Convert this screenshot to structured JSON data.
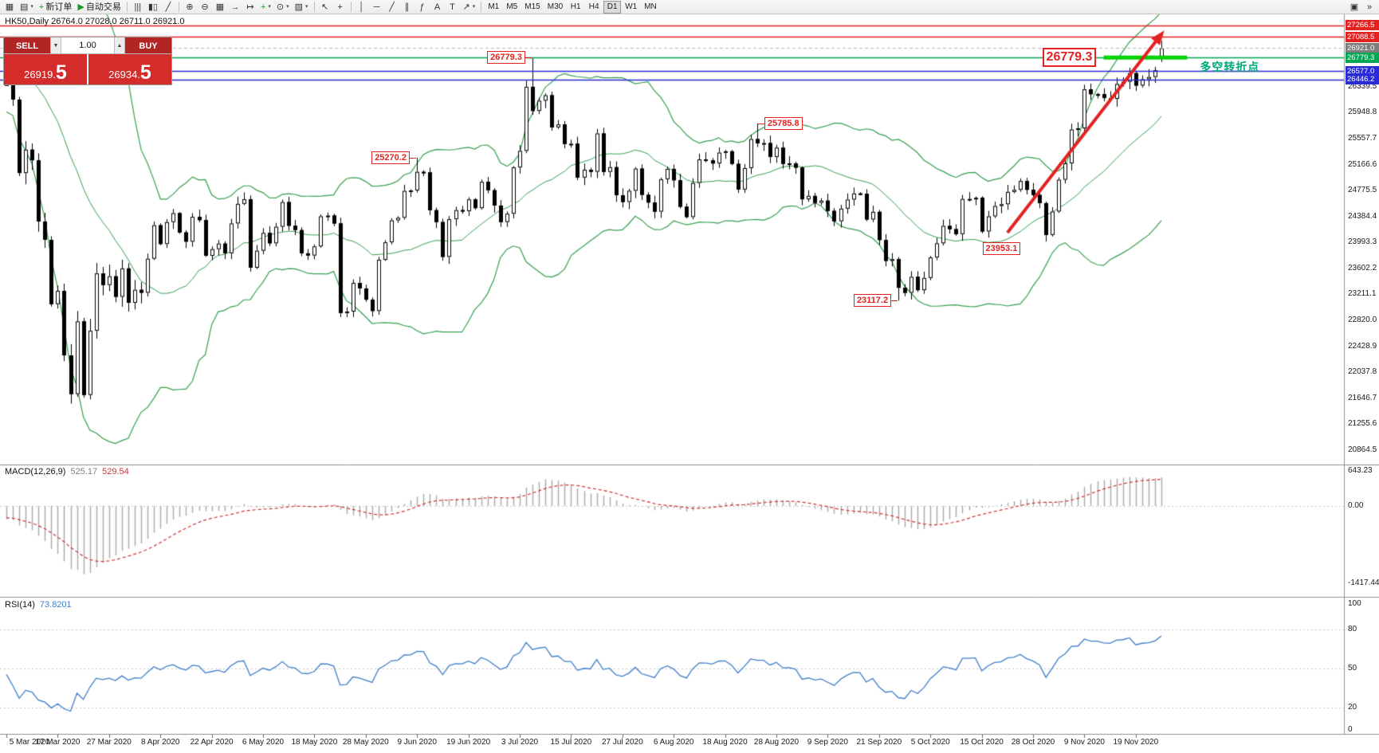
{
  "colors": {
    "background": "#ffffff",
    "candle_up_fill": "#ffffff",
    "candle_down_fill": "#000000",
    "candle_border": "#000000",
    "bollinger": "#35a050",
    "macd_histogram": "#a8a8a8",
    "macd_signal": "#d23030",
    "rsi_line": "#3f7fca",
    "level_red": "#e32222",
    "level_green": "#00a651",
    "level_blue": "#2b2bd5",
    "highlight_green": "#00d300",
    "turning_label_color": "#00a878",
    "separator": "#8f8f8f",
    "grid_dotted": "#c8c8c8",
    "axis_text": "#1a1a1a"
  },
  "toolbar": {
    "items": [
      {
        "t": "btn",
        "name": "new-chart-icon",
        "glyph": "▦"
      },
      {
        "t": "btn",
        "name": "profiles-icon",
        "glyph": "▤",
        "caret": true
      },
      {
        "t": "btn",
        "name": "new-order-button",
        "glyph": "+",
        "glyph_color": "#1a9c2f",
        "label": "新订单"
      },
      {
        "t": "btn",
        "name": "autotrading-button",
        "glyph": "▶",
        "glyph_color": "#1a9c2f",
        "label": "自动交易"
      },
      {
        "t": "sep"
      },
      {
        "t": "btn",
        "name": "bar-chart-icon",
        "glyph": "|||"
      },
      {
        "t": "btn",
        "name": "candlestick-chart-icon",
        "glyph": "▮▯"
      },
      {
        "t": "btn",
        "name": "line-chart-icon",
        "glyph": "╱"
      },
      {
        "t": "sep"
      },
      {
        "t": "btn",
        "name": "zoom-in-icon",
        "glyph": "⊕"
      },
      {
        "t": "btn",
        "name": "zoom-out-icon",
        "glyph": "⊖"
      },
      {
        "t": "btn",
        "name": "tile-windows-icon",
        "glyph": "▦"
      },
      {
        "t": "btn",
        "name": "auto-scroll-icon",
        "glyph": "→"
      },
      {
        "t": "btn",
        "name": "chart-shift-icon",
        "glyph": "↦"
      },
      {
        "t": "btn",
        "name": "indicators-icon",
        "glyph": "+",
        "glyph_color": "#1a9c2f",
        "caret": true
      },
      {
        "t": "btn",
        "name": "periods-icon",
        "glyph": "⊙",
        "caret": true
      },
      {
        "t": "btn",
        "name": "templates-icon",
        "glyph": "▧",
        "caret": true
      },
      {
        "t": "sep"
      },
      {
        "t": "btn",
        "name": "cursor-icon",
        "glyph": "↖"
      },
      {
        "t": "btn",
        "name": "crosshair-icon",
        "glyph": "+"
      },
      {
        "t": "sep"
      },
      {
        "t": "btn",
        "name": "vertical-line-icon",
        "glyph": "│"
      },
      {
        "t": "btn",
        "name": "horizontal-line-icon",
        "glyph": "─"
      },
      {
        "t": "btn",
        "name": "trendline-icon",
        "glyph": "╱"
      },
      {
        "t": "btn",
        "name": "channel-icon",
        "glyph": "∥"
      },
      {
        "t": "btn",
        "name": "fibonacci-icon",
        "glyph": "ƒ"
      },
      {
        "t": "btn",
        "name": "text-icon",
        "glyph": "A"
      },
      {
        "t": "btn",
        "name": "text-label-icon",
        "glyph": "T"
      },
      {
        "t": "btn",
        "name": "arrows-icon",
        "glyph": "↗",
        "caret": true
      },
      {
        "t": "sep"
      }
    ],
    "timeframes": [
      {
        "label": "M1"
      },
      {
        "label": "M5"
      },
      {
        "label": "M15"
      },
      {
        "label": "M30"
      },
      {
        "label": "H1"
      },
      {
        "label": "H4"
      },
      {
        "label": "D1",
        "active": true
      },
      {
        "label": "W1"
      },
      {
        "label": "MN"
      }
    ],
    "overflow_items": [
      {
        "name": "chart-window-icon",
        "glyph": "▣"
      },
      {
        "name": "toolbar-overflow-icon",
        "glyph": "»"
      }
    ]
  },
  "chart": {
    "header": "HK50,Daily  26764.0 27028.0 26711.0 26921.0",
    "one_click": {
      "sell_label": "SELL",
      "buy_label": "BUY",
      "volume": "1.00",
      "sell_price_small": "26919.",
      "sell_price_big": "5",
      "buy_price_small": "26934.",
      "buy_price_big": "5"
    },
    "price_axis_tags": [
      {
        "text": "27266.5",
        "price": 27266.5,
        "bg": "#e32222"
      },
      {
        "text": "27088.5",
        "price": 27088.5,
        "bg": "#e32222"
      },
      {
        "text": "26921.0",
        "price": 26921.0,
        "bg": "#7d7d7d"
      },
      {
        "text": "26779.3",
        "price": 26779.3,
        "bg": "#00a651"
      },
      {
        "text": "26577.0",
        "price": 26577.0,
        "bg": "#2b2bd5"
      },
      {
        "text": "26446.2",
        "price": 26446.2,
        "bg": "#2b2bd5"
      }
    ],
    "levels": [
      {
        "price": 27266.5,
        "color": "#e32222",
        "w": 1.3,
        "dash": false
      },
      {
        "price": 27088.5,
        "color": "#e32222",
        "w": 1.3,
        "dash": false
      },
      {
        "price": 26921.0,
        "color": "#bbbbbb",
        "w": 1,
        "dash": true
      },
      {
        "price": 26779.3,
        "color": "#00a651",
        "w": 1.5,
        "dash": false
      },
      {
        "price": 26577.0,
        "color": "#2b2bd5",
        "w": 1.3,
        "dash": false
      },
      {
        "price": 26446.2,
        "color": "#2b2bd5",
        "w": 1.3,
        "dash": false
      }
    ],
    "highlight_segment": {
      "price": 26779.3,
      "from_index": 171,
      "to_index": 184,
      "thickness": 5
    },
    "trend_arrow": {
      "from_index": 156,
      "from_price": 24140,
      "to_index": 180,
      "to_price": 27130,
      "width": 4
    },
    "annotations": [
      {
        "text": "25270.2",
        "index": 64,
        "price": 25270.2,
        "side": "left",
        "connector": true,
        "big": false
      },
      {
        "text": "26779.3",
        "index": 82,
        "price": 26779.3,
        "side": "left",
        "connector": true,
        "big": false
      },
      {
        "text": "25785.8",
        "index": 117,
        "price": 25785.8,
        "side": "right",
        "connector": true,
        "big": false
      },
      {
        "text": "23953.1",
        "index": 151,
        "price": 23900,
        "side": "right",
        "connector": false,
        "big": false
      },
      {
        "text": "23117.2",
        "index": 139,
        "price": 23117.2,
        "side": "left",
        "connector": true,
        "big": false
      },
      {
        "text": "26779.3",
        "index": 171,
        "price": 26779.3,
        "side": "left",
        "connector": false,
        "big": true
      }
    ],
    "turning_label": {
      "text": "多空转折点",
      "index": 186,
      "price": 26640
    }
  },
  "panes": {
    "macd": {
      "name": "MACD(12,26,9)",
      "value_main": "525.17",
      "value_signal": "529.54"
    },
    "rsi": {
      "name": "RSI(14)",
      "value": "73.8201"
    }
  },
  "chart_data": {
    "type": "candlestick",
    "symbol": "HK50",
    "timeframe": "Daily",
    "current_bar": {
      "open": 26764.0,
      "high": 27028.0,
      "low": 26711.0,
      "close": 26921.0
    },
    "bid": 26919.5,
    "ask": 26934.5,
    "price_axis_ticks": [
      26730.6,
      26339.5,
      25948.8,
      25557.7,
      25166.6,
      24775.5,
      24384.4,
      23993.3,
      23602.2,
      23211.1,
      22820.0,
      22428.9,
      22037.8,
      21646.7,
      21255.6,
      20864.5
    ],
    "x_tick_step": 8,
    "x_tick_labels": [
      "5 Mar 2020",
      "17 Mar 2020",
      "27 Mar 2020",
      "8 Apr 2020",
      "22 Apr 2020",
      "6 May 2020",
      "18 May 2020",
      "28 May 2020",
      "9 Jun 2020",
      "19 Jun 2020",
      "3 Jul 2020",
      "15 Jul 2020",
      "27 Jul 2020",
      "6 Aug 2020",
      "18 Aug 2020",
      "28 Aug 2020",
      "9 Sep 2020",
      "21 Sep 2020",
      "5 Oct 2020",
      "15 Oct 2020",
      "28 Oct 2020",
      "9 Nov 2020",
      "19 Nov 2020"
    ],
    "pre_closes": [
      27404,
      27309,
      27160,
      26820,
      26893,
      26782,
      26696,
      26820,
      27308,
      27228,
      27119,
      26926,
      26820,
      26729,
      26129,
      25954,
      26291,
      26284,
      26222
    ],
    "closes": [
      26767,
      26146,
      25040,
      25392,
      25232,
      24309,
      24033,
      23064,
      23264,
      22292,
      21709,
      22805,
      21696,
      22663,
      23527,
      23352,
      23484,
      23175,
      23603,
      23085,
      23280,
      23236,
      23749,
      24253,
      23970,
      24300,
      24435,
      24145,
      24006,
      24380,
      24330,
      23793,
      23893,
      23977,
      23831,
      24280,
      24575,
      24644,
      23613,
      23869,
      24137,
      23981,
      24230,
      24602,
      24245,
      24180,
      23830,
      23797,
      23934,
      24388,
      24399,
      24280,
      22930,
      22953,
      23384,
      23301,
      23132,
      22961,
      23732,
      23996,
      24326,
      24366,
      24770,
      24777,
      25057,
      25049,
      24480,
      24301,
      23776,
      24344,
      24481,
      24465,
      24643,
      24511,
      24907,
      24781,
      24550,
      24301,
      24427,
      25124,
      25373,
      26339,
      25975,
      26129,
      26211,
      25727,
      25772,
      25477,
      25481,
      24971,
      25089,
      25058,
      25636,
      25057,
      25128,
      24705,
      24603,
      24772,
      25106,
      24711,
      24595,
      24458,
      24946,
      25102,
      24930,
      24532,
      24377,
      24890,
      25245,
      25230,
      25183,
      25347,
      25367,
      25178,
      24791,
      25114,
      25551,
      25486,
      25491,
      25281,
      25422,
      25177,
      25185,
      25120,
      24644,
      24695,
      24590,
      24624,
      24469,
      24313,
      24503,
      24640,
      24732,
      24726,
      24340,
      24455,
      24030,
      23716,
      23742,
      23311,
      23235,
      23476,
      23275,
      23459,
      23767,
      23981,
      24243,
      24194,
      24119,
      24649,
      24650,
      24667,
      24159,
      24387,
      24543,
      24570,
      24755,
      24786,
      24919,
      24787,
      24709,
      24586,
      24107,
      24460,
      24939,
      25186,
      25695,
      25713,
      26301,
      26227,
      26226,
      26169,
      26157,
      26381,
      26415,
      26544,
      26357,
      26452,
      26486,
      26588,
      26921
    ],
    "bar_overrides": {
      "0": {
        "open": 26350
      },
      "64": {
        "high": 25270.2
      },
      "81": {
        "high": 26430
      },
      "82": {
        "high": 26779.3
      },
      "117": {
        "high": 25785.8
      },
      "136": {
        "low": 23953.1
      },
      "139": {
        "low": 23117.2
      },
      "180": {
        "open": 26764.0,
        "high": 27028.0,
        "low": 26711.0
      }
    },
    "overlays": {
      "bollinger_bands": {
        "period": 20,
        "deviations": 2
      }
    },
    "macd": {
      "params": [
        12,
        26,
        9
      ],
      "current_values": [
        525.17,
        529.54
      ],
      "axis": [
        643.23,
        0.0,
        -1417.44
      ]
    },
    "rsi": {
      "params": [
        14
      ],
      "current_value": 73.8201,
      "axis": [
        100,
        80,
        50,
        20,
        0
      ],
      "levels": [
        80,
        50,
        20
      ]
    },
    "price_annotations": [
      25270.2,
      26779.3,
      25785.8,
      23953.1,
      23117.2
    ],
    "level_lines": [
      27266.5,
      27088.5,
      26921.0,
      26779.3,
      26577.0,
      26446.2
    ]
  }
}
